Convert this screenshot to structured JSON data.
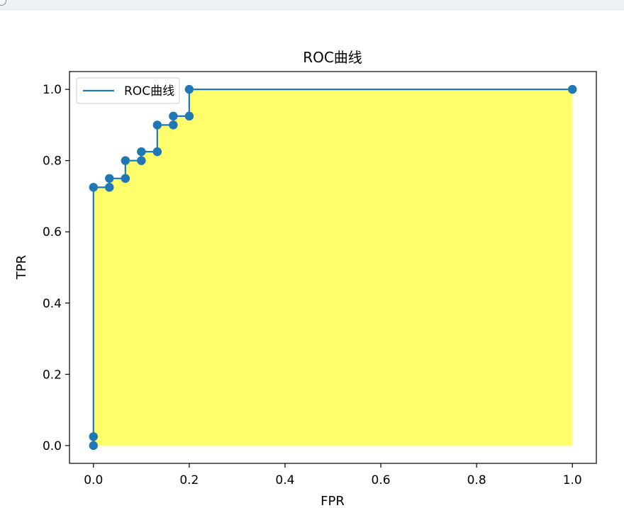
{
  "chart_data": {
    "type": "line",
    "title": "ROC曲线",
    "xlabel": "FPR",
    "ylabel": "TPR",
    "xlim": [
      -0.05,
      1.05
    ],
    "ylim": [
      -0.05,
      1.05
    ],
    "x_ticks": [
      "0.0",
      "0.2",
      "0.4",
      "0.6",
      "0.8",
      "1.0"
    ],
    "y_ticks": [
      "0.0",
      "0.2",
      "0.4",
      "0.6",
      "0.8",
      "1.0"
    ],
    "legend": {
      "placement": "top-left",
      "entries": [
        "ROC曲线"
      ]
    },
    "grid": false,
    "fill_color": "#ffff66",
    "line_color": "#1f77b4",
    "marker_fill_color": "#b4dc50",
    "series": [
      {
        "name": "ROC曲线",
        "step": "post",
        "x": [
          0.0,
          0.0,
          0.0,
          0.0333,
          0.0333,
          0.0667,
          0.0667,
          0.1,
          0.1,
          0.1333,
          0.1333,
          0.1667,
          0.1667,
          0.2,
          0.2,
          1.0
        ],
        "y": [
          0.0,
          0.025,
          0.725,
          0.725,
          0.75,
          0.75,
          0.8,
          0.8,
          0.825,
          0.825,
          0.9,
          0.9,
          0.925,
          0.925,
          1.0,
          1.0
        ]
      }
    ],
    "fill_between_markers": {
      "x": [
        0.0,
        0.0333,
        0.0667,
        0.1,
        0.1333,
        0.1667,
        0.2,
        1.0
      ],
      "y": [
        0.025,
        0.725,
        0.75,
        0.8,
        0.825,
        0.9,
        0.925,
        1.0
      ]
    }
  }
}
